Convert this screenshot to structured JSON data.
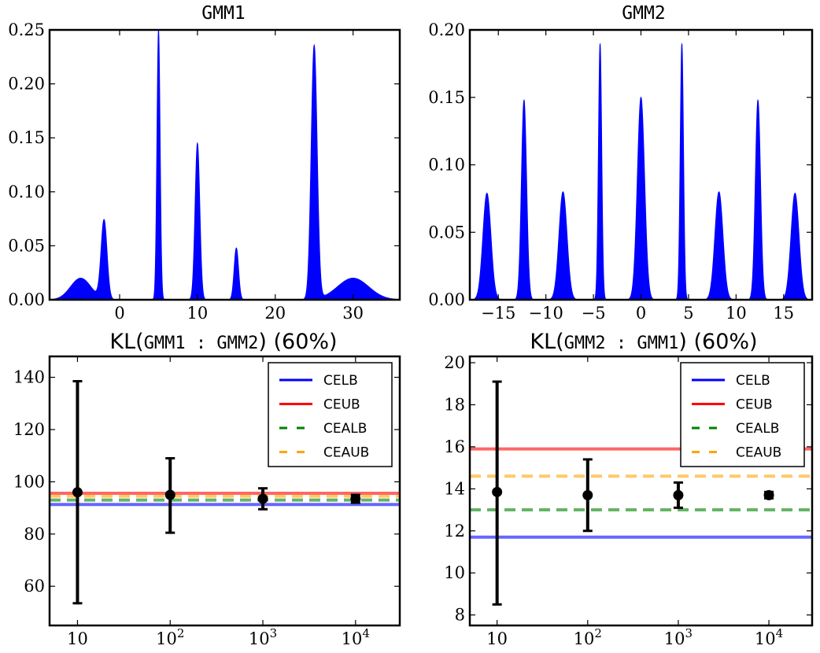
{
  "figure": {
    "gmm1_title": "GMM1",
    "gmm2_title": "GMM2",
    "kl12_title": {
      "prefix": "KL(",
      "inner": "GMM1 : GMM2",
      "suffix": ") (60%)"
    },
    "kl21_title": {
      "prefix": "KL(",
      "inner": "GMM2 : GMM1",
      "suffix": ") (60%)"
    },
    "legend_labels": [
      "CELB",
      "CEUB",
      "CEALB",
      "CEAUB"
    ],
    "colors": {
      "density": "#0000ff",
      "CELB": "#0000ff",
      "CEUB": "#ff0000",
      "CEALB": "#008000",
      "CEAUB": "#ffa500",
      "errorbar": "#000000"
    }
  },
  "chart_data": [
    {
      "id": "gmm1",
      "type": "area",
      "title": "GMM1",
      "xlim": [
        -9,
        36
      ],
      "ylim": [
        0,
        0.25
      ],
      "xticks": [
        0,
        10,
        20,
        30
      ],
      "yticks": [
        0.0,
        0.05,
        0.1,
        0.15,
        0.2,
        0.25
      ],
      "ytick_labels": [
        "0.00",
        "0.05",
        "0.10",
        "0.15",
        "0.20",
        "0.25"
      ],
      "components": [
        {
          "mean": -5,
          "peak": 0.02,
          "sigma": 1.3
        },
        {
          "mean": -2,
          "peak": 0.073,
          "sigma": 0.38
        },
        {
          "mean": 5,
          "peak": 0.25,
          "sigma": 0.2
        },
        {
          "mean": 10,
          "peak": 0.145,
          "sigma": 0.3
        },
        {
          "mean": 15,
          "peak": 0.048,
          "sigma": 0.28
        },
        {
          "mean": 25,
          "peak": 0.235,
          "sigma": 0.38
        },
        {
          "mean": 30,
          "peak": 0.02,
          "sigma": 2.0
        }
      ]
    },
    {
      "id": "gmm2",
      "type": "area",
      "title": "GMM2",
      "xlim": [
        -18,
        18
      ],
      "ylim": [
        0,
        0.2
      ],
      "xticks": [
        -15,
        -10,
        -5,
        0,
        5,
        10,
        15
      ],
      "xtick_labels": [
        "−15",
        "−10",
        "−5",
        "0",
        "5",
        "10",
        "15"
      ],
      "yticks": [
        0.0,
        0.05,
        0.1,
        0.15,
        0.2
      ],
      "ytick_labels": [
        "0.00",
        "0.05",
        "0.10",
        "0.15",
        "0.20"
      ],
      "components": [
        {
          "mean": -16.2,
          "peak": 0.079,
          "sigma": 0.42
        },
        {
          "mean": -12.3,
          "peak": 0.148,
          "sigma": 0.27
        },
        {
          "mean": -8.2,
          "peak": 0.08,
          "sigma": 0.42
        },
        {
          "mean": -4.3,
          "peak": 0.19,
          "sigma": 0.17
        },
        {
          "mean": 0,
          "peak": 0.15,
          "sigma": 0.38
        },
        {
          "mean": 4.3,
          "peak": 0.19,
          "sigma": 0.17
        },
        {
          "mean": 8.2,
          "peak": 0.08,
          "sigma": 0.42
        },
        {
          "mean": 12.3,
          "peak": 0.148,
          "sigma": 0.27
        },
        {
          "mean": 16.2,
          "peak": 0.079,
          "sigma": 0.42
        }
      ]
    },
    {
      "id": "kl12",
      "type": "scatter",
      "title": "KL(GMM1 : GMM2) (60%)",
      "xscale": "log",
      "xlim": [
        5,
        30000
      ],
      "ylim": [
        45,
        148
      ],
      "xticks": [
        10,
        100,
        1000,
        10000
      ],
      "yticks": [
        60,
        80,
        100,
        120,
        140
      ],
      "hlines": [
        {
          "name": "CELB",
          "y": 91.3,
          "style": "solid"
        },
        {
          "name": "CEUB",
          "y": 95.6,
          "style": "solid"
        },
        {
          "name": "CEALB",
          "y": 93.0,
          "style": "dashed"
        },
        {
          "name": "CEAUB",
          "y": 94.5,
          "style": "dashed"
        }
      ],
      "points": [
        {
          "x": 10,
          "y": 96.0,
          "lo": 53.5,
          "hi": 138.5
        },
        {
          "x": 100,
          "y": 95.0,
          "lo": 80.5,
          "hi": 109.0
        },
        {
          "x": 1000,
          "y": 93.5,
          "lo": 89.5,
          "hi": 97.5
        },
        {
          "x": 10000,
          "y": 93.5,
          "lo": 92.0,
          "hi": 95.0
        }
      ],
      "legend": "top-right"
    },
    {
      "id": "kl21",
      "type": "scatter",
      "title": "KL(GMM2 : GMM1) (60%)",
      "xscale": "log",
      "xlim": [
        5,
        30000
      ],
      "ylim": [
        7.5,
        20.3
      ],
      "xticks": [
        10,
        100,
        1000,
        10000
      ],
      "yticks": [
        8,
        10,
        12,
        14,
        16,
        18,
        20
      ],
      "hlines": [
        {
          "name": "CELB",
          "y": 11.7,
          "style": "solid"
        },
        {
          "name": "CEUB",
          "y": 15.9,
          "style": "solid"
        },
        {
          "name": "CEALB",
          "y": 13.0,
          "style": "dashed"
        },
        {
          "name": "CEAUB",
          "y": 14.6,
          "style": "dashed"
        }
      ],
      "points": [
        {
          "x": 10,
          "y": 13.85,
          "lo": 8.5,
          "hi": 19.1
        },
        {
          "x": 100,
          "y": 13.7,
          "lo": 12.0,
          "hi": 15.4
        },
        {
          "x": 1000,
          "y": 13.7,
          "lo": 13.1,
          "hi": 14.3
        },
        {
          "x": 10000,
          "y": 13.7,
          "lo": 13.55,
          "hi": 13.85
        }
      ],
      "legend": "top-right"
    }
  ]
}
